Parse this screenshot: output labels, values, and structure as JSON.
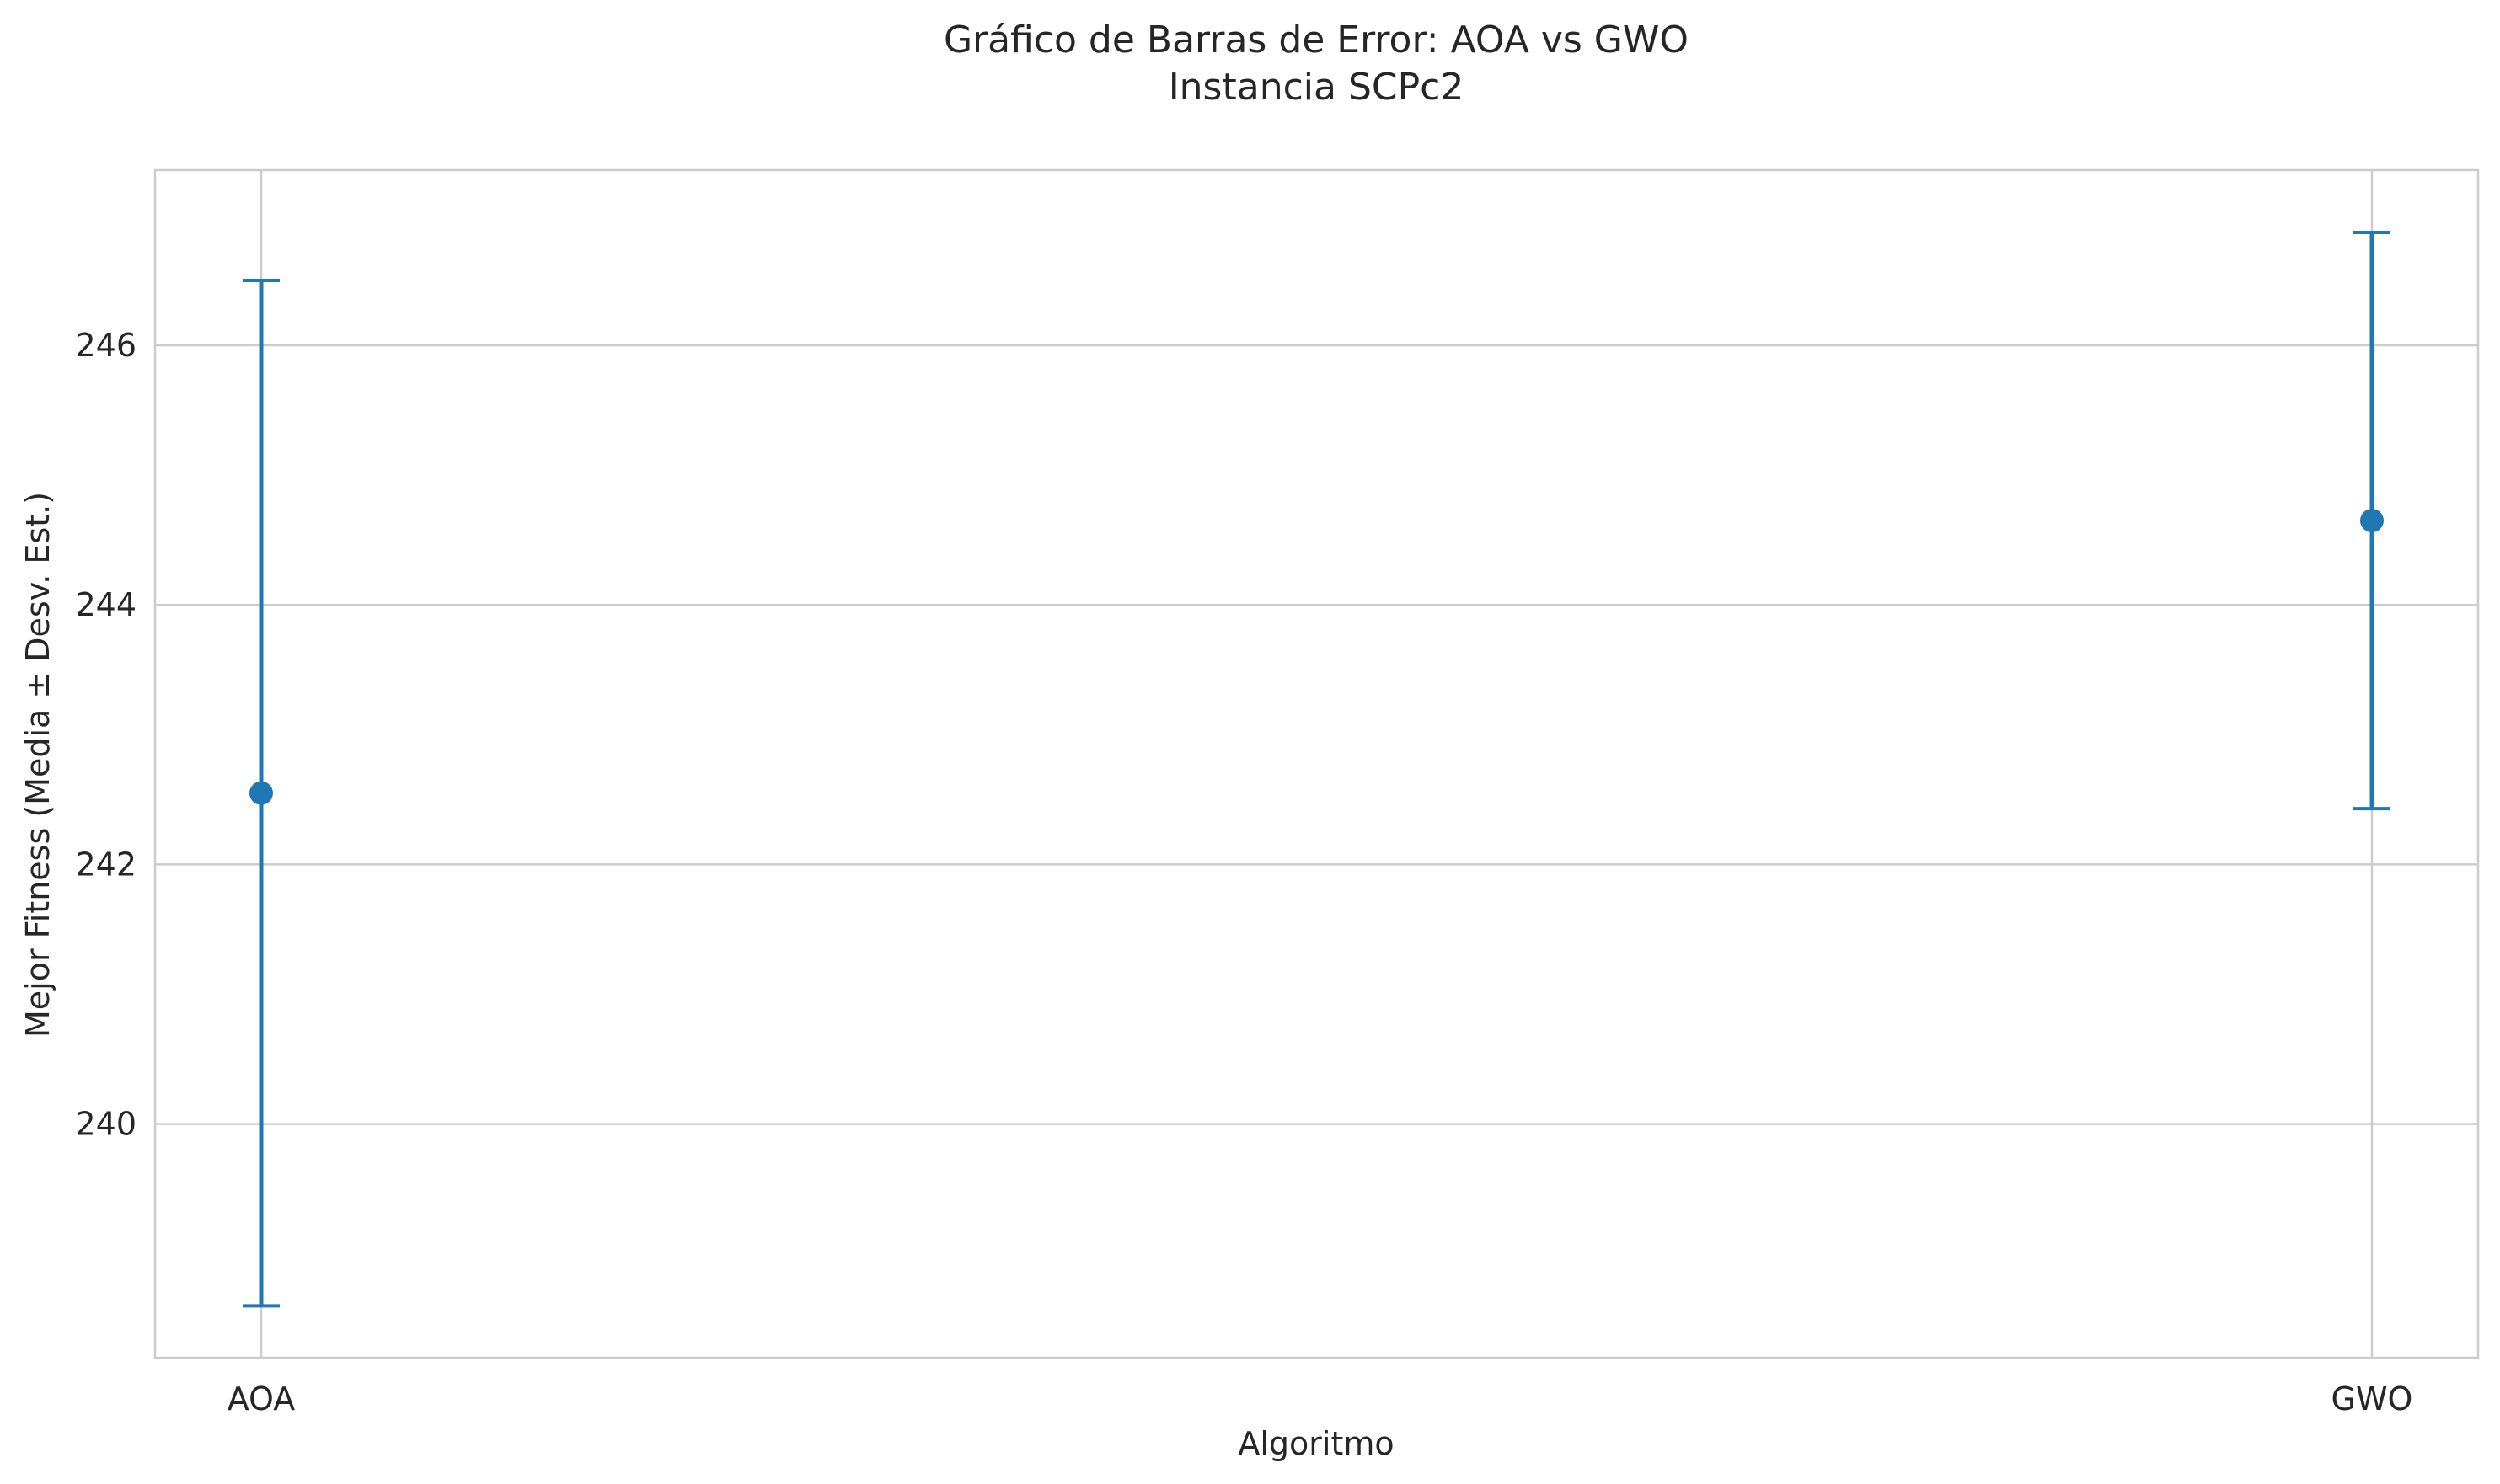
{
  "colors": {
    "series": "#1f77b4",
    "grid": "#cccccc",
    "axes_border": "#cccccc",
    "text": "#262626",
    "background": "#ffffff"
  },
  "chart_data": {
    "type": "errorbar",
    "title": "Gráfico de Barras de Error: AOA vs GWO",
    "subtitle": "Instancia SCPc2",
    "xlabel": "Algoritmo",
    "ylabel": "Mejor Fitness (Media ± Desv. Est.)",
    "categories": [
      "AOA",
      "GWO"
    ],
    "means": [
      242.55,
      244.65
    ],
    "errors": [
      3.95,
      2.22
    ],
    "ylim": [
      238.2,
      247.35
    ],
    "yticks": [
      240,
      242,
      244,
      246
    ],
    "grid": true,
    "legend": "none"
  }
}
